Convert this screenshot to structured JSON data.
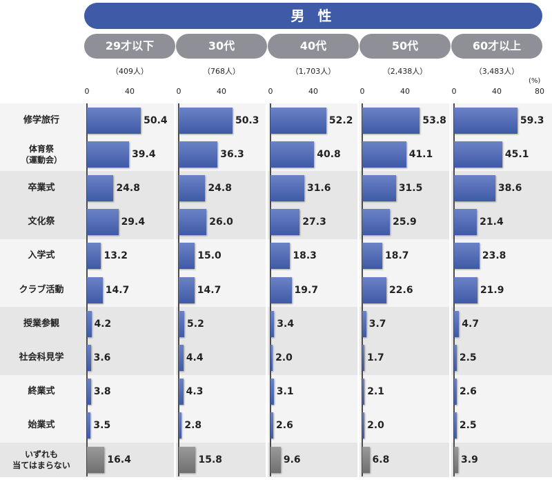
{
  "header": {
    "title": "男 性",
    "unit": "(%)"
  },
  "chart_data": {
    "type": "bar",
    "orientation": "horizontal",
    "title": "男 性",
    "xlim": [
      0,
      80
    ],
    "xticks": [
      "0",
      "40"
    ],
    "xticks_last": [
      "0",
      "40",
      "80"
    ],
    "unit": "(%)",
    "categories": [
      "修学旅行",
      "体育祭\n（運動会）",
      "卒業式",
      "文化祭",
      "入学式",
      "クラブ活動",
      "授業参観",
      "社会科見学",
      "終業式",
      "始業式",
      "いずれも\n当てはまらない"
    ],
    "series": [
      {
        "name": "29才以下",
        "count": "（409人）",
        "values": [
          50.4,
          39.4,
          24.8,
          29.4,
          13.2,
          14.7,
          4.2,
          3.6,
          3.8,
          3.5,
          16.4
        ],
        "labels": [
          "50.4",
          "39.4",
          "24.8",
          "29.4",
          "13.2",
          "14.7",
          "4.2",
          "3.6",
          "3.8",
          "3.5",
          "16.4"
        ]
      },
      {
        "name": "30代",
        "count": "（768人）",
        "values": [
          50.3,
          36.3,
          24.8,
          26.0,
          15.0,
          14.7,
          5.2,
          4.4,
          4.3,
          2.8,
          15.8
        ],
        "labels": [
          "50.3",
          "36.3",
          "24.8",
          "26.0",
          "15.0",
          "14.7",
          "5.2",
          "4.4",
          "4.3",
          "2.8",
          "15.8"
        ]
      },
      {
        "name": "40代",
        "count": "（1,703人）",
        "values": [
          52.2,
          40.8,
          31.6,
          27.3,
          18.3,
          19.7,
          3.4,
          2.0,
          3.1,
          2.6,
          9.6
        ],
        "labels": [
          "52.2",
          "40.8",
          "31.6",
          "27.3",
          "18.3",
          "19.7",
          "3.4",
          "2.0",
          "3.1",
          "2.6",
          "9.6"
        ]
      },
      {
        "name": "50代",
        "count": "（2,438人）",
        "values": [
          53.8,
          41.1,
          31.5,
          25.9,
          18.7,
          22.6,
          3.7,
          1.7,
          2.1,
          2.0,
          6.8
        ],
        "labels": [
          "53.8",
          "41.1",
          "31.5",
          "25.9",
          "18.7",
          "22.6",
          "3.7",
          "1.7",
          "2.1",
          "2.0",
          "6.8"
        ]
      },
      {
        "name": "60才以上",
        "count": "（3,483人）",
        "values": [
          59.3,
          45.1,
          38.6,
          21.4,
          23.8,
          21.9,
          4.7,
          2.5,
          2.6,
          2.5,
          3.9
        ],
        "labels": [
          "59.3",
          "45.1",
          "38.6",
          "21.4",
          "23.8",
          "21.9",
          "4.7",
          "2.5",
          "2.6",
          "2.5",
          "3.9"
        ]
      }
    ],
    "colors": {
      "bar": "#3f5aa6",
      "bar_last": "#777777",
      "banner": "#3f5aa6",
      "pill": "#8f8f98",
      "band_dark": "#e6e6e6",
      "band_light": "#f4f4f4"
    }
  }
}
